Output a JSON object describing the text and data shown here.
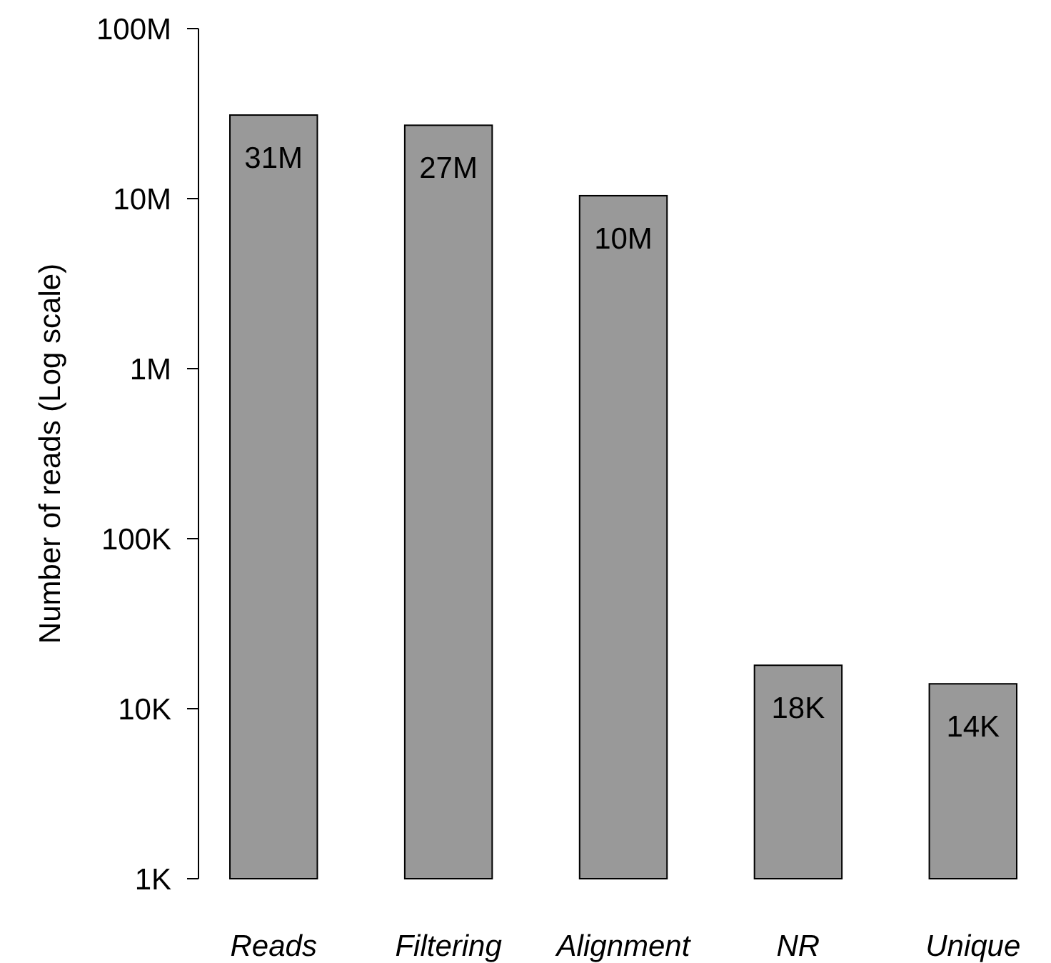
{
  "chart_data": {
    "type": "bar",
    "ylabel": "Number of reads (Log scale)",
    "categories": [
      "Reads",
      "Filtering",
      "Alignment",
      "NR",
      "Unique"
    ],
    "values": [
      31000000,
      27000000,
      10400000,
      18000,
      14000
    ],
    "value_labels": [
      "31M",
      "27M",
      "10M",
      "18K",
      "14K"
    ],
    "color": "#999999",
    "log": true,
    "ylim": [
      1000,
      100000000
    ],
    "yticks": [
      {
        "value": 1000,
        "label": "1K"
      },
      {
        "value": 10000,
        "label": "10K"
      },
      {
        "value": 100000,
        "label": "100K"
      },
      {
        "value": 1000000,
        "label": "1M"
      },
      {
        "value": 10000000,
        "label": "10M"
      },
      {
        "value": 100000000,
        "label": "100M"
      }
    ]
  }
}
